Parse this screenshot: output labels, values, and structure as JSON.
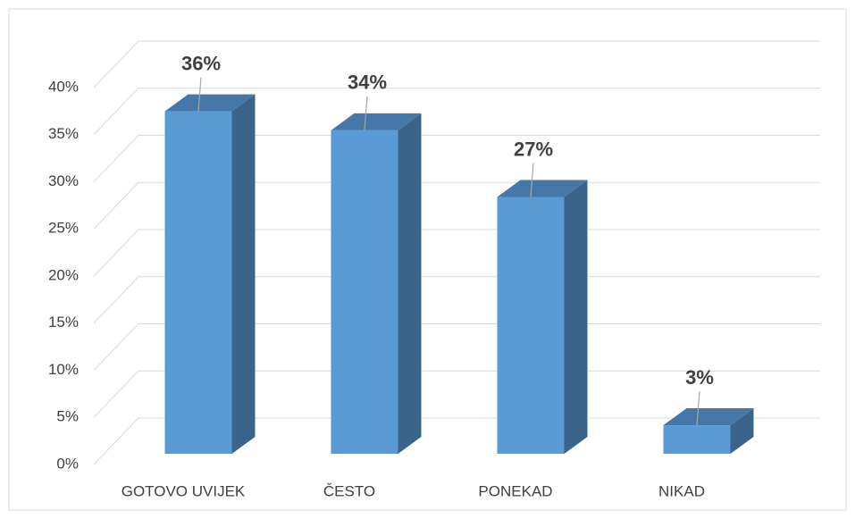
{
  "chart_data": {
    "type": "bar3d",
    "categories": [
      "GOTOVO UVIJEK",
      "ČESTO",
      "PONEKAD",
      "NIKAD"
    ],
    "values": [
      36,
      34,
      27,
      3
    ],
    "value_labels": [
      "36%",
      "34%",
      "27%",
      "3%"
    ],
    "color": "#5b9bd5",
    "ylim": [
      0,
      40
    ],
    "yticks": [
      {
        "value": 0,
        "label": "0%"
      },
      {
        "value": 5,
        "label": "5%"
      },
      {
        "value": 10,
        "label": "10%"
      },
      {
        "value": 15,
        "label": "15%"
      },
      {
        "value": 20,
        "label": "20%"
      },
      {
        "value": 25,
        "label": "25%"
      },
      {
        "value": 30,
        "label": "30%"
      },
      {
        "value": 35,
        "label": "35%"
      },
      {
        "value": 40,
        "label": "40%"
      }
    ],
    "grid": true
  }
}
